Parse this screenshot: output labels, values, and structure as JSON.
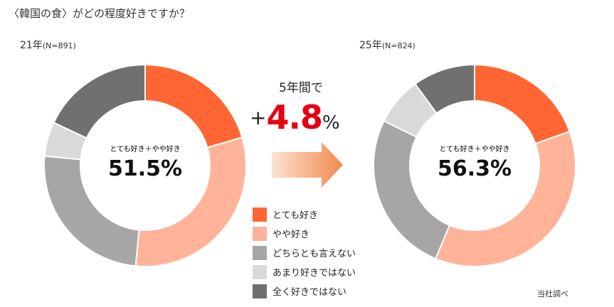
{
  "title": "〈韓国の食〉がどの程度好きですか？",
  "source": "当社調べ",
  "comparison": {
    "label": "5年間で",
    "plus": "+",
    "value": "4.8",
    "unit": "%"
  },
  "chart_data": [
    {
      "type": "pie",
      "donut": true,
      "year_label": "21年",
      "n_label": "(N=891)",
      "center_label": "とても好き＋やや好き",
      "center_value": "51.5%",
      "categories": [
        "とても好き",
        "やや好き",
        "どちらとも言えない",
        "あまり好きではない",
        "全く好きではない"
      ],
      "values": [
        20.5,
        31.0,
        25.0,
        5.5,
        18.0
      ],
      "colors": [
        "#ff6633",
        "#ffb399",
        "#a6a6a6",
        "#d9d9d9",
        "#707070"
      ]
    },
    {
      "type": "pie",
      "donut": true,
      "year_label": "25年",
      "n_label": "(N=824)",
      "center_label": "とても好き＋やや好き",
      "center_value": "56.3%",
      "categories": [
        "とても好き",
        "やや好き",
        "どちらとも言えない",
        "あまり好きではない",
        "全く好きではない"
      ],
      "values": [
        19.5,
        36.8,
        26.0,
        7.7,
        10.0
      ],
      "colors": [
        "#ff6633",
        "#ffb399",
        "#a6a6a6",
        "#d9d9d9",
        "#707070"
      ]
    }
  ],
  "legend": [
    {
      "label": "とても好き",
      "color": "#ff6633"
    },
    {
      "label": "やや好き",
      "color": "#ffb399"
    },
    {
      "label": "どちらとも言えない",
      "color": "#a6a6a6"
    },
    {
      "label": "あまり好きではない",
      "color": "#d9d9d9"
    },
    {
      "label": "全く好きではない",
      "color": "#707070"
    }
  ]
}
